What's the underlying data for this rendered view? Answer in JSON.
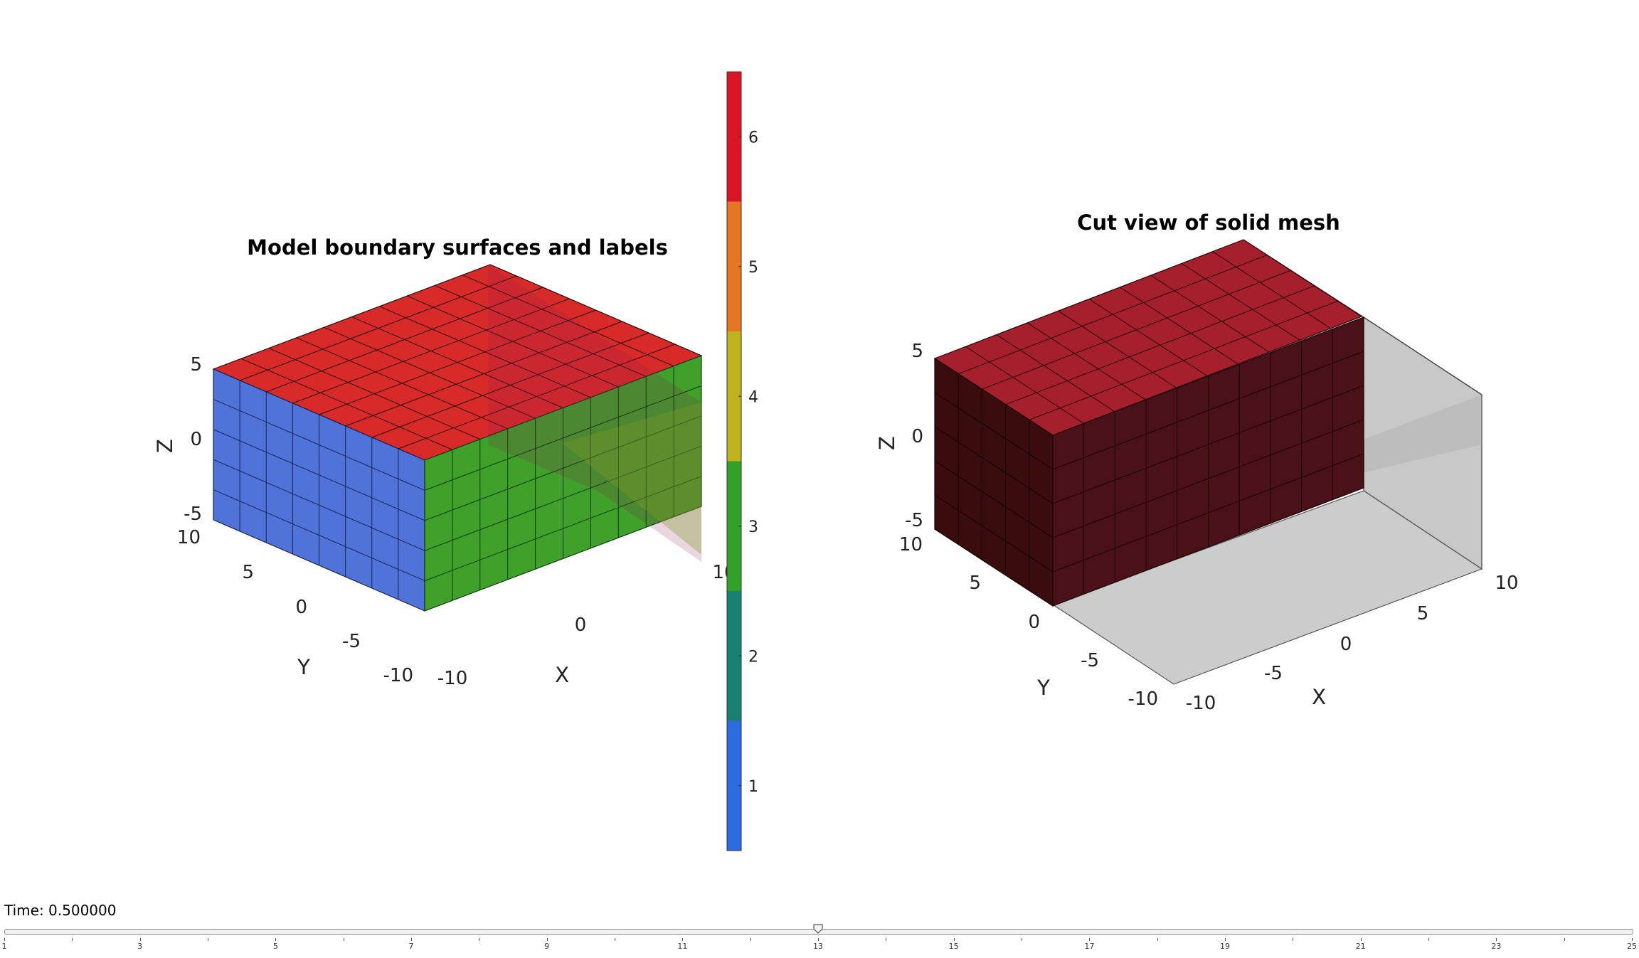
{
  "left_plot": {
    "title": "Model boundary surfaces and labels",
    "xlabel": "X",
    "ylabel": "Y",
    "zlabel": "Z",
    "x_ticks": [
      "-10",
      "0",
      "10"
    ],
    "y_ticks": [
      "10",
      "5",
      "0",
      "-5",
      "-10"
    ],
    "z_ticks": [
      "5",
      "0",
      "-5"
    ],
    "face_colors": {
      "x_min": "#4f73d9",
      "y_min": "#3fa02a",
      "z_max": "#d92a2a"
    }
  },
  "right_plot": {
    "title": "Cut view of solid mesh",
    "xlabel": "X",
    "ylabel": "Y",
    "zlabel": "Z",
    "x_ticks": [
      "-10",
      "-5",
      "0",
      "5",
      "10"
    ],
    "y_ticks": [
      "10",
      "5",
      "0",
      "-5",
      "-10"
    ],
    "z_ticks": [
      "5",
      "0",
      "-5"
    ],
    "solid_color": "#a51f2d"
  },
  "colorbar": {
    "labels": [
      "1",
      "2",
      "3",
      "4",
      "5",
      "6"
    ],
    "colors": [
      "#2d6be0",
      "#178070",
      "#33a02a",
      "#bfb21f",
      "#e67722",
      "#db1426"
    ]
  },
  "time_slider": {
    "label": "Time: 0.500000",
    "min": 1,
    "max": 25,
    "value": 13,
    "tick_labels": [
      "1",
      "3",
      "5",
      "7",
      "9",
      "11",
      "13",
      "15",
      "17",
      "19",
      "21",
      "23",
      "25"
    ]
  }
}
